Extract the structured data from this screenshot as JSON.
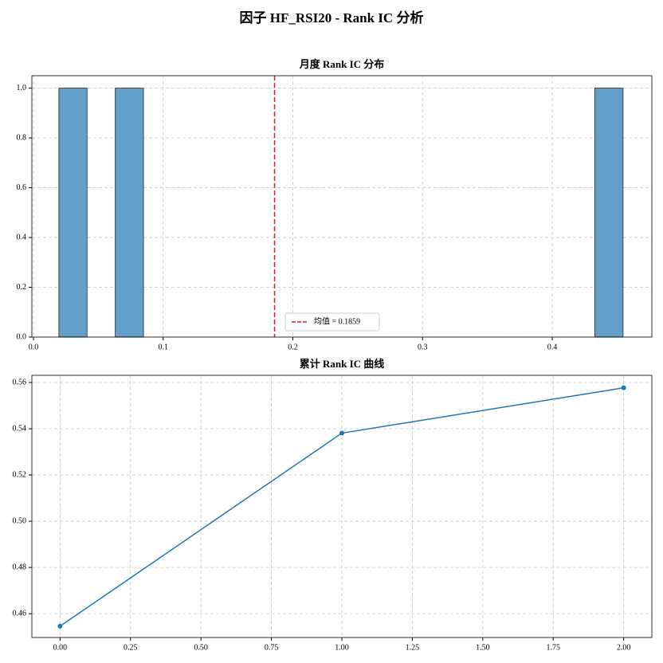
{
  "title": "因子 HF_RSI20 - Rank IC 分析",
  "chart_data": [
    {
      "type": "histogram",
      "title": "月度 Rank IC 分布",
      "bins": [
        0.0196,
        0.04135,
        0.0631,
        0.08485,
        0.1066,
        0.12835,
        0.1501,
        0.17185,
        0.1936,
        0.21535,
        0.2371,
        0.25885,
        0.2806,
        0.30235,
        0.3241,
        0.34585,
        0.3676,
        0.38935,
        0.4111,
        0.43285,
        0.4546
      ],
      "values": [
        1,
        0,
        1,
        0,
        0,
        0,
        0,
        0,
        0,
        0,
        0,
        0,
        0,
        0,
        0,
        0,
        0,
        0,
        0,
        1
      ],
      "color": "#62a0cb",
      "mean": 0.1859,
      "mean_label": "均值 = 0.1859",
      "mean_color": "#e31a1c",
      "xlim": [
        -0.0012,
        0.4768
      ],
      "xticks": [
        {
          "value": 0,
          "label": "0.0"
        },
        0.1,
        0.2,
        0.3,
        0.4
      ],
      "ylim": [
        0,
        1.05
      ],
      "yticks": [
        {
          "value": 0,
          "label": "0.0"
        },
        0.2,
        0.4,
        0.6,
        0.8,
        {
          "value": 1,
          "label": "1.0"
        }
      ],
      "grid": true,
      "legend": "lower center"
    },
    {
      "type": "line",
      "title": "累计 Rank IC 曲线",
      "x": [
        0,
        1,
        2
      ],
      "values": [
        0.4546,
        0.5381,
        0.5577
      ],
      "color": "#1f77b4",
      "xlim": [
        -0.1,
        2.1
      ],
      "xticks": [
        {
          "value": 0,
          "label": "0.00"
        },
        0.25,
        {
          "value": 0.5,
          "label": "0.50"
        },
        0.75,
        {
          "value": 1,
          "label": "1.00"
        },
        1.25,
        {
          "value": 1.5,
          "label": "1.50"
        },
        1.75,
        {
          "value": 2,
          "label": "2.00"
        }
      ],
      "ylim": [
        0.4497,
        0.5631
      ],
      "yticks": [
        0.46,
        0.48,
        {
          "value": 0.5,
          "label": "0.50"
        },
        0.52,
        0.54,
        0.56
      ],
      "grid": true
    }
  ]
}
